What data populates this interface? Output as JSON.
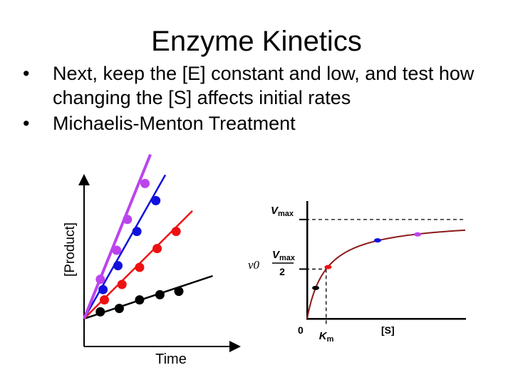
{
  "slide": {
    "title": "Enzyme Kinetics",
    "bullets": [
      "Next, keep the [E] constant and low, and test how changing the [S] affects initial rates",
      "Michaelis-Menton Treatment"
    ]
  },
  "chart_data": [
    {
      "type": "scatter",
      "title": "",
      "xlabel": "Time",
      "ylabel": "[Product]",
      "xlim": [
        0,
        10
      ],
      "ylim": [
        0,
        10
      ],
      "grid": false,
      "series": [
        {
          "color": "#000000",
          "points": [
            [
              1.2,
              0.4
            ],
            [
              2.6,
              0.6
            ],
            [
              4.1,
              1.1
            ],
            [
              5.6,
              1.4
            ],
            [
              7.0,
              1.6
            ]
          ],
          "fit": [
            [
              0,
              0
            ],
            [
              9.5,
              2.5
            ]
          ]
        },
        {
          "color": "#ee1111",
          "points": [
            [
              1.5,
              1.1
            ],
            [
              2.8,
              2.0
            ],
            [
              4.1,
              3.0
            ],
            [
              5.4,
              4.1
            ],
            [
              6.8,
              5.1
            ]
          ],
          "fit": [
            [
              0,
              0
            ],
            [
              8.0,
              6.3
            ]
          ]
        },
        {
          "color": "#1111dd",
          "points": [
            [
              1.4,
              1.7
            ],
            [
              2.5,
              3.1
            ],
            [
              3.9,
              5.1
            ],
            [
              5.3,
              6.9
            ]
          ],
          "fit": [
            [
              0,
              0
            ],
            [
              6.0,
              8.4
            ]
          ]
        },
        {
          "color": "#bb44ee",
          "points": [
            [
              1.2,
              2.3
            ],
            [
              2.4,
              4.0
            ],
            [
              3.2,
              5.8
            ],
            [
              4.5,
              7.9
            ]
          ],
          "fit": [
            [
              0,
              0
            ],
            [
              4.9,
              9.6
            ]
          ]
        }
      ]
    },
    {
      "type": "line",
      "title": "",
      "xlabel": "[S]",
      "ylabel": "v0",
      "x_origin_label": "0",
      "ticks": {
        "vmax": {
          "main": "V",
          "sub": "max"
        },
        "half_vmax": {
          "main": "V",
          "sub": "max",
          "denominator": "2"
        },
        "km": {
          "main": "K",
          "sub": "m"
        }
      },
      "vmax": 1.0,
      "km": 1.0,
      "xlim": [
        0,
        8.3
      ],
      "ylim": [
        0,
        1.15
      ],
      "curve_color": "#8b1a1a",
      "points": [
        {
          "x": 0.45,
          "y": 0.31,
          "color": "#000000"
        },
        {
          "x": 1.1,
          "y": 0.52,
          "color": "#ee1111"
        },
        {
          "x": 3.7,
          "y": 0.79,
          "color": "#1111dd"
        },
        {
          "x": 5.8,
          "y": 0.85,
          "color": "#bb44ee"
        }
      ]
    }
  ]
}
